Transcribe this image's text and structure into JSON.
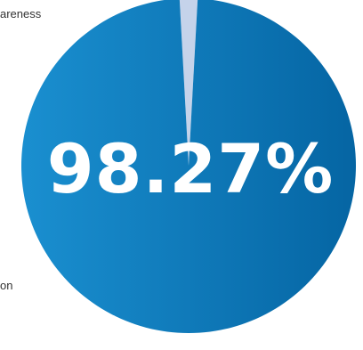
{
  "chart_data": {
    "type": "pie",
    "slices": [
      {
        "label": "areness",
        "value": 1.73,
        "color": "#c5d3ea"
      },
      {
        "label": "on",
        "value": 98.27,
        "color": "#0a70b0"
      }
    ],
    "center_label": "98.27%",
    "gradient": [
      "#1a8fd0",
      "#0565a3"
    ]
  }
}
